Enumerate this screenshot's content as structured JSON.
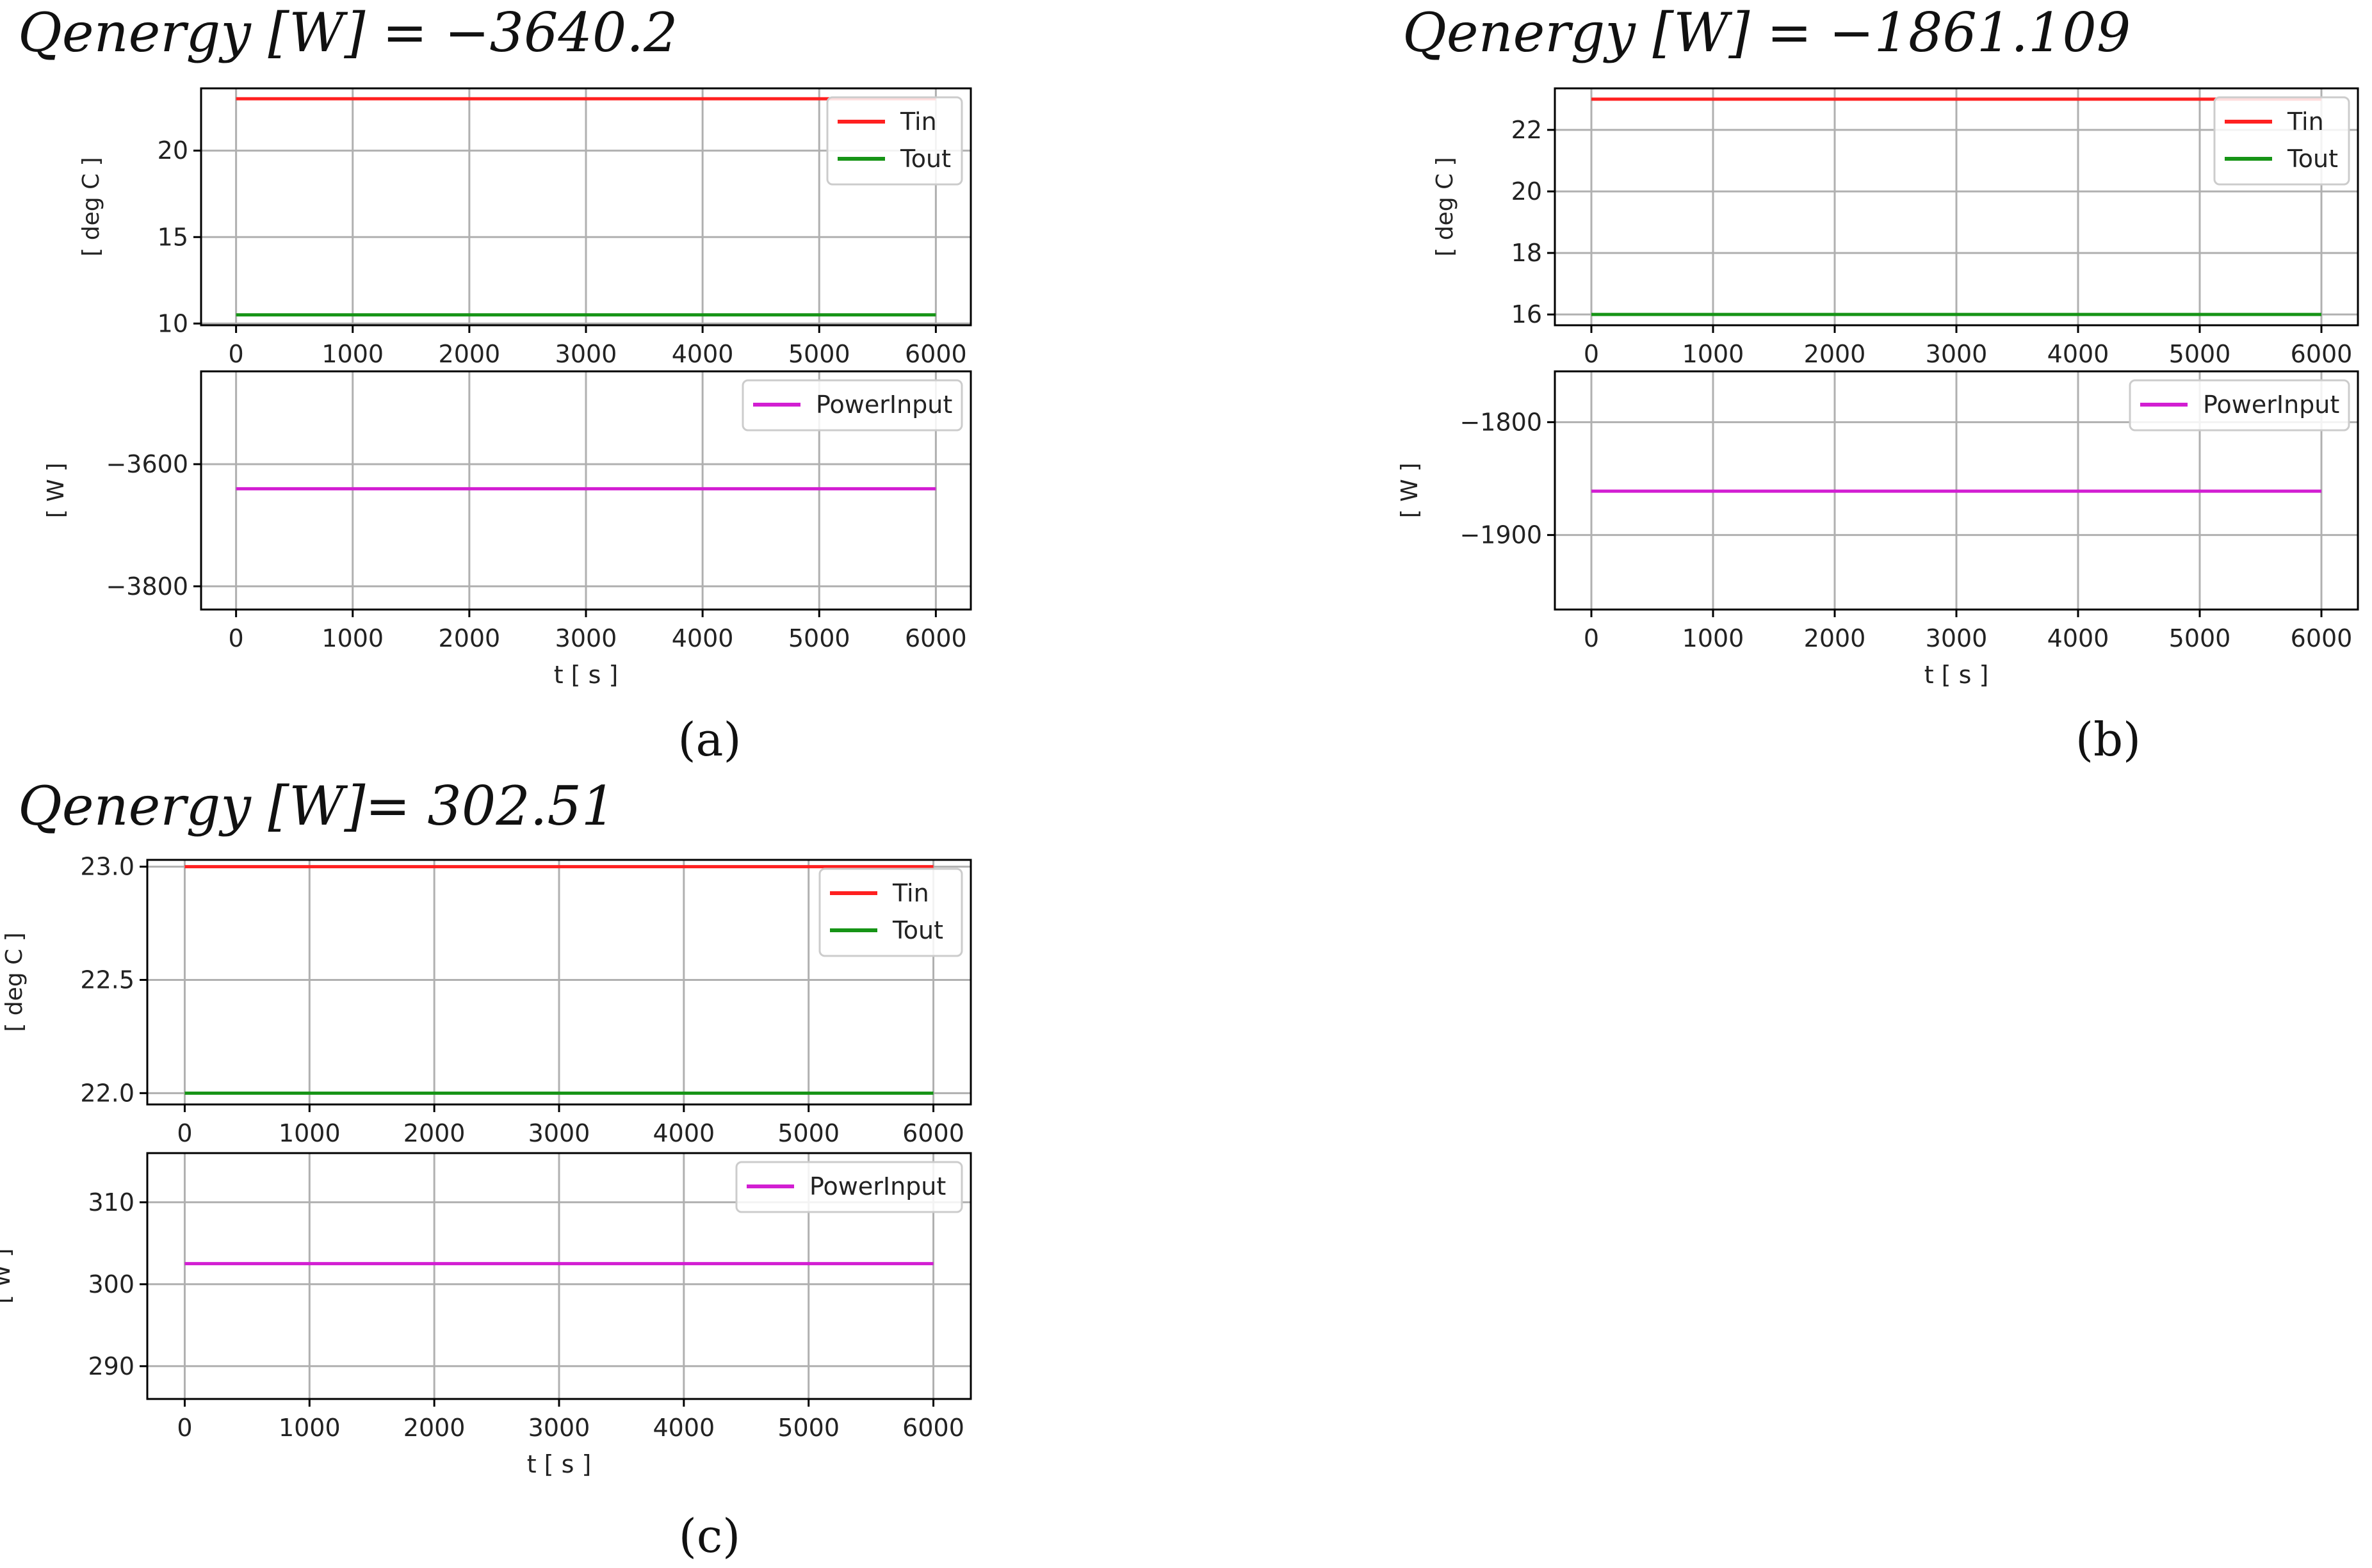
{
  "figure": {
    "panels": [
      {
        "id": "a",
        "title": "Qenergy [W] = −3640.2",
        "label": "(a)"
      },
      {
        "id": "b",
        "title": "Qenergy [W] = −1861.109",
        "label": "(b)"
      },
      {
        "id": "c",
        "title": "Qenergy [W]= 302.51",
        "label": "(c)"
      }
    ]
  },
  "chart_data": [
    {
      "panel": "a",
      "subplot": "temperature",
      "type": "line",
      "x_ticks": [
        0,
        1000,
        2000,
        3000,
        4000,
        5000,
        6000
      ],
      "xlim": [
        -300,
        6300
      ],
      "xlabel": "",
      "ylabel": "[ deg C ]",
      "y_ticks": [
        10,
        15,
        20
      ],
      "ylim": [
        9.9,
        23.6
      ],
      "grid": true,
      "legend": "top-right",
      "series": [
        {
          "name": "Tin",
          "color": "#ff2020",
          "x": [
            0,
            6000
          ],
          "values": [
            23.0,
            23.0
          ]
        },
        {
          "name": "Tout",
          "color": "#169416",
          "x": [
            0,
            6000
          ],
          "values": [
            10.5,
            10.5
          ]
        }
      ]
    },
    {
      "panel": "a",
      "subplot": "power",
      "type": "line",
      "x_ticks": [
        0,
        1000,
        2000,
        3000,
        4000,
        5000,
        6000
      ],
      "xlim": [
        -300,
        6300
      ],
      "xlabel": "t [ s ]",
      "ylabel": "[ W ]",
      "y_ticks": [
        -3800,
        -3600
      ],
      "y_tick_labels": [
        "−3800",
        "−3600"
      ],
      "ylim": [
        -3838,
        -3448
      ],
      "grid": true,
      "legend": "top-right",
      "series": [
        {
          "name": "PowerInput",
          "color": "#d21ed2",
          "x": [
            0,
            6000
          ],
          "values": [
            -3640.2,
            -3640.2
          ]
        }
      ]
    },
    {
      "panel": "b",
      "subplot": "temperature",
      "type": "line",
      "x_ticks": [
        0,
        1000,
        2000,
        3000,
        4000,
        5000,
        6000
      ],
      "xlim": [
        -300,
        6300
      ],
      "xlabel": "",
      "ylabel": "[ deg C ]",
      "y_ticks": [
        16,
        18,
        20,
        22
      ],
      "ylim": [
        15.65,
        23.35
      ],
      "grid": true,
      "legend": "top-right",
      "series": [
        {
          "name": "Tin",
          "color": "#ff2020",
          "x": [
            0,
            6000
          ],
          "values": [
            23.0,
            23.0
          ]
        },
        {
          "name": "Tout",
          "color": "#169416",
          "x": [
            0,
            6000
          ],
          "values": [
            16.0,
            16.0
          ]
        }
      ]
    },
    {
      "panel": "b",
      "subplot": "power",
      "type": "line",
      "x_ticks": [
        0,
        1000,
        2000,
        3000,
        4000,
        5000,
        6000
      ],
      "xlim": [
        -300,
        6300
      ],
      "xlabel": "t [ s ]",
      "ylabel": "[ W ]",
      "y_ticks": [
        -1900,
        -1800
      ],
      "y_tick_labels": [
        "−1900",
        "−1800"
      ],
      "ylim": [
        -1966,
        -1755
      ],
      "grid": true,
      "legend": "top-right",
      "series": [
        {
          "name": "PowerInput",
          "color": "#d21ed2",
          "x": [
            0,
            6000
          ],
          "values": [
            -1861.109,
            -1861.109
          ]
        }
      ]
    },
    {
      "panel": "c",
      "subplot": "temperature",
      "type": "line",
      "x_ticks": [
        0,
        1000,
        2000,
        3000,
        4000,
        5000,
        6000
      ],
      "xlim": [
        -300,
        6300
      ],
      "xlabel": "",
      "ylabel": "[ deg C ]",
      "y_ticks": [
        22.0,
        22.5,
        23.0
      ],
      "y_tick_labels": [
        "22.0",
        "22.5",
        "23.0"
      ],
      "ylim": [
        21.95,
        23.03
      ],
      "grid": true,
      "legend": "top-right",
      "series": [
        {
          "name": "Tin",
          "color": "#ff2020",
          "x": [
            0,
            6000
          ],
          "values": [
            23.0,
            23.0
          ]
        },
        {
          "name": "Tout",
          "color": "#169416",
          "x": [
            0,
            6000
          ],
          "values": [
            22.0,
            22.0
          ]
        }
      ]
    },
    {
      "panel": "c",
      "subplot": "power",
      "type": "line",
      "x_ticks": [
        0,
        1000,
        2000,
        3000,
        4000,
        5000,
        6000
      ],
      "xlim": [
        -300,
        6300
      ],
      "xlabel": "t [ s ]",
      "ylabel": "[ W ]",
      "y_ticks": [
        290,
        300,
        310
      ],
      "ylim": [
        286,
        316
      ],
      "grid": true,
      "legend": "top-right",
      "series": [
        {
          "name": "PowerInput",
          "color": "#d21ed2",
          "x": [
            0,
            6000
          ],
          "values": [
            302.51,
            302.51
          ]
        }
      ]
    }
  ]
}
